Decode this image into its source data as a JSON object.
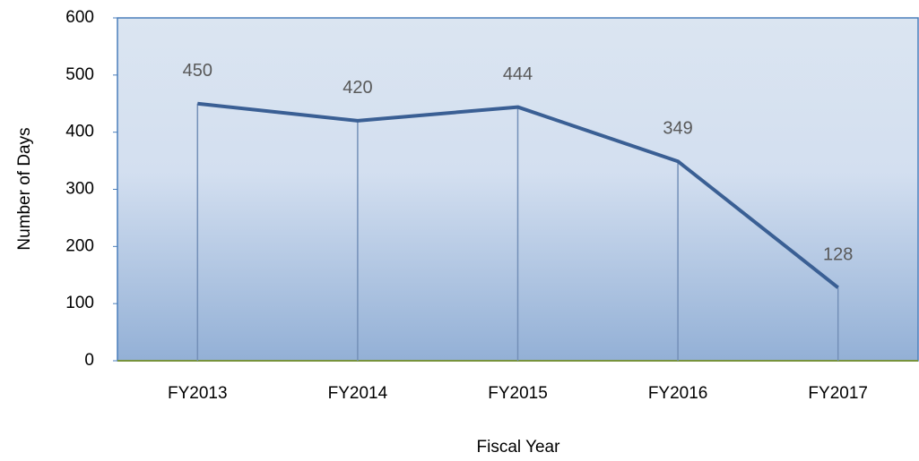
{
  "chart_data": {
    "type": "line",
    "x_label": "Fiscal Year",
    "y_label": "Number of Days",
    "categories": [
      "FY2013",
      "FY2014",
      "FY2015",
      "FY2016",
      "FY2017"
    ],
    "values": [
      450,
      420,
      444,
      349,
      128
    ],
    "color": "#3a5f94",
    "drop_lines": true,
    "ylim": [
      0,
      600
    ],
    "yticks": [
      0,
      100,
      200,
      300,
      400,
      500,
      600
    ]
  }
}
